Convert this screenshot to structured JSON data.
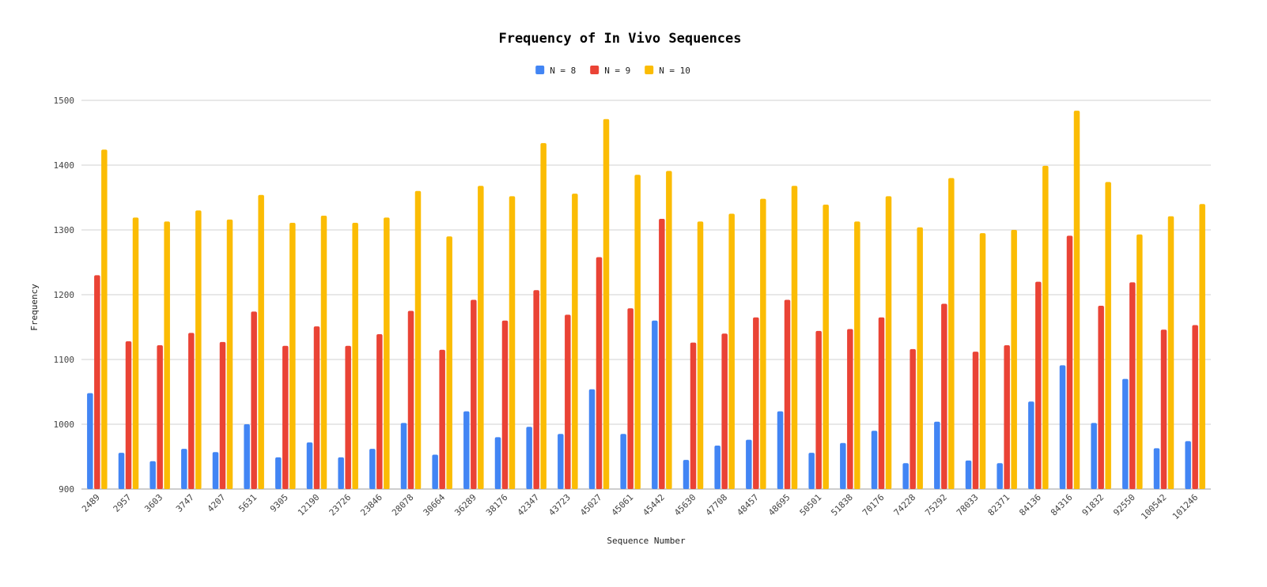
{
  "chart_data": {
    "type": "bar",
    "title": "Frequency of In Vivo Sequences",
    "xlabel": "Sequence Number",
    "ylabel": "Frequency",
    "ylim": [
      900,
      1500
    ],
    "yticks": [
      900,
      1000,
      1100,
      1200,
      1300,
      1400,
      1500
    ],
    "grid": true,
    "legend_position": "top-center",
    "categories": [
      "2489",
      "2957",
      "3603",
      "3747",
      "4207",
      "5631",
      "9305",
      "12190",
      "23726",
      "23846",
      "28078",
      "30664",
      "36289",
      "38176",
      "42347",
      "43723",
      "45027",
      "45061",
      "45442",
      "45630",
      "47708",
      "48457",
      "48695",
      "50501",
      "51838",
      "70176",
      "74228",
      "75292",
      "78033",
      "82371",
      "84136",
      "84316",
      "91832",
      "92550",
      "100542",
      "101246"
    ],
    "series": [
      {
        "name": "N = 8",
        "color": "#4285f4",
        "values": [
          1048,
          956,
          943,
          962,
          957,
          1000,
          949,
          972,
          949,
          962,
          1002,
          953,
          1020,
          980,
          996,
          985,
          1054,
          985,
          1160,
          945,
          967,
          976,
          1020,
          956,
          971,
          990,
          940,
          1004,
          944,
          940,
          1035,
          1091,
          1002,
          1070,
          963,
          974
        ]
      },
      {
        "name": "N = 9",
        "color": "#ea4335",
        "values": [
          1230,
          1128,
          1122,
          1141,
          1127,
          1174,
          1121,
          1151,
          1121,
          1139,
          1175,
          1115,
          1192,
          1160,
          1207,
          1169,
          1258,
          1179,
          1317,
          1126,
          1140,
          1165,
          1192,
          1144,
          1147,
          1165,
          1116,
          1186,
          1112,
          1122,
          1220,
          1291,
          1183,
          1219,
          1146,
          1153
        ]
      },
      {
        "name": "N = 10",
        "color": "#fbbc04",
        "values": [
          1424,
          1319,
          1313,
          1330,
          1316,
          1354,
          1311,
          1322,
          1311,
          1319,
          1360,
          1290,
          1368,
          1352,
          1434,
          1356,
          1471,
          1385,
          1391,
          1313,
          1325,
          1348,
          1368,
          1339,
          1313,
          1352,
          1304,
          1380,
          1295,
          1300,
          1399,
          1484,
          1374,
          1293,
          1321,
          1340
        ]
      }
    ]
  }
}
